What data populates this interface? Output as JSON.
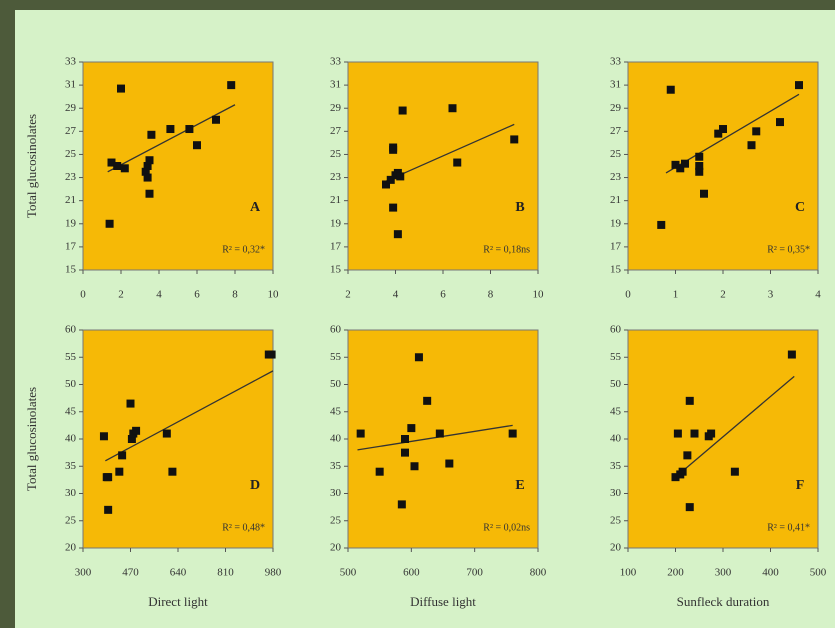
{
  "chart_data": [
    {
      "type": "scatter",
      "label": "A",
      "annotation": "R² = 0,32*",
      "ylabel": "Total glucosinolates",
      "x": [
        1.4,
        1.5,
        1.8,
        2,
        2.2,
        3.3,
        3.4,
        3.4,
        3.5,
        3.6,
        3.5,
        4.6,
        5.6,
        6,
        7,
        7.8
      ],
      "values": [
        19,
        24.3,
        24,
        30.7,
        23.8,
        23.5,
        24,
        23,
        21.6,
        26.7,
        24.5,
        27.2,
        27.2,
        25.8,
        28,
        31
      ],
      "fit": {
        "x": [
          1.3,
          8
        ],
        "values": [
          23.5,
          29.3
        ]
      },
      "xlim": [
        0,
        10
      ],
      "xticks": [
        0,
        2,
        4,
        6,
        8,
        10
      ],
      "ylim": [
        15,
        33
      ],
      "yticks": [
        15,
        17,
        19,
        21,
        23,
        25,
        27,
        29,
        31,
        33
      ],
      "color": "#111111",
      "background": "#f6b906"
    },
    {
      "type": "scatter",
      "label": "B",
      "annotation": "R² = 0,18ns",
      "x": [
        3.6,
        3.8,
        3.9,
        4,
        4.1,
        3.9,
        4.1,
        4.3,
        3.9,
        6.4,
        6.6,
        9,
        4.2
      ],
      "values": [
        22.4,
        22.8,
        25.6,
        23.2,
        23.4,
        20.4,
        18.1,
        28.8,
        25.4,
        29,
        24.3,
        26.3,
        23.1
      ],
      "fit": {
        "x": [
          3.5,
          9
        ],
        "values": [
          22.6,
          27.6
        ]
      },
      "xlim": [
        2,
        10
      ],
      "xticks": [
        2,
        4,
        6,
        8,
        10
      ],
      "ylim": [
        15,
        33
      ],
      "yticks": [
        15,
        17,
        19,
        21,
        23,
        25,
        27,
        29,
        31,
        33
      ],
      "color": "#111111",
      "background": "#f6b906"
    },
    {
      "type": "scatter",
      "label": "C",
      "annotation": "R² = 0,35*",
      "x": [
        0.7,
        0.9,
        1,
        1.1,
        1.2,
        1.5,
        1.5,
        1.6,
        1.5,
        1.9,
        2,
        2.6,
        2.7,
        3.2,
        3.6
      ],
      "values": [
        18.9,
        30.6,
        24.1,
        23.8,
        24.2,
        23.5,
        24,
        21.6,
        24.8,
        26.8,
        27.2,
        25.8,
        27,
        27.8,
        31
      ],
      "fit": {
        "x": [
          0.8,
          3.6
        ],
        "values": [
          23.4,
          30.2
        ]
      },
      "xlim": [
        0,
        4
      ],
      "xticks": [
        0,
        1,
        2,
        3,
        4
      ],
      "ylim": [
        15,
        33
      ],
      "yticks": [
        15,
        17,
        19,
        21,
        23,
        25,
        27,
        29,
        31,
        33
      ],
      "color": "#111111",
      "background": "#f6b906"
    },
    {
      "type": "scatter",
      "label": "D",
      "annotation": "R² = 0,48*",
      "ylabel": "Total glucosinolates",
      "xlabel": "Direct light",
      "x": [
        375,
        385,
        390,
        390,
        430,
        440,
        470,
        475,
        480,
        490,
        600,
        620,
        965,
        975
      ],
      "values": [
        40.5,
        33,
        27,
        33,
        34,
        37,
        46.5,
        40,
        41,
        41.5,
        41,
        34,
        55.5,
        55.5
      ],
      "fit": {
        "x": [
          380,
          980
        ],
        "values": [
          36,
          52.5
        ]
      },
      "xlim": [
        300,
        980
      ],
      "xticks": [
        300,
        470,
        640,
        810,
        980
      ],
      "ylim": [
        20,
        60
      ],
      "yticks": [
        20,
        25,
        30,
        35,
        40,
        45,
        50,
        55,
        60
      ],
      "color": "#111111",
      "background": "#f6b906"
    },
    {
      "type": "scatter",
      "label": "E",
      "annotation": "R² = 0,02ns",
      "xlabel": "Diffuse light",
      "x": [
        520,
        550,
        585,
        590,
        590,
        600,
        605,
        612,
        625,
        645,
        660,
        760
      ],
      "values": [
        41,
        34,
        28,
        37.5,
        40,
        42,
        35,
        55,
        47,
        41,
        35.5,
        41
      ],
      "fit": {
        "x": [
          515,
          760
        ],
        "values": [
          38,
          42.5
        ]
      },
      "xlim": [
        500,
        800
      ],
      "xticks": [
        500,
        600,
        700,
        800
      ],
      "ylim": [
        20,
        60
      ],
      "yticks": [
        20,
        25,
        30,
        35,
        40,
        45,
        50,
        55,
        60
      ],
      "color": "#111111",
      "background": "#f6b906"
    },
    {
      "type": "scatter",
      "label": "F",
      "annotation": "R² = 0,41*",
      "xlabel": "Sunfleck duration",
      "x": [
        200,
        205,
        215,
        225,
        230,
        230,
        240,
        270,
        275,
        325,
        445,
        210
      ],
      "values": [
        33,
        41,
        34,
        37,
        47,
        27.5,
        41,
        40.5,
        41,
        34,
        55.5,
        33.5
      ],
      "fit": {
        "x": [
          200,
          450
        ],
        "values": [
          33,
          51.5
        ]
      },
      "xlim": [
        100,
        500
      ],
      "xticks": [
        100,
        200,
        300,
        400,
        500
      ],
      "ylim": [
        20,
        60
      ],
      "yticks": [
        20,
        25,
        30,
        35,
        40,
        45,
        50,
        55,
        60
      ],
      "color": "#111111",
      "background": "#f6b906"
    }
  ]
}
